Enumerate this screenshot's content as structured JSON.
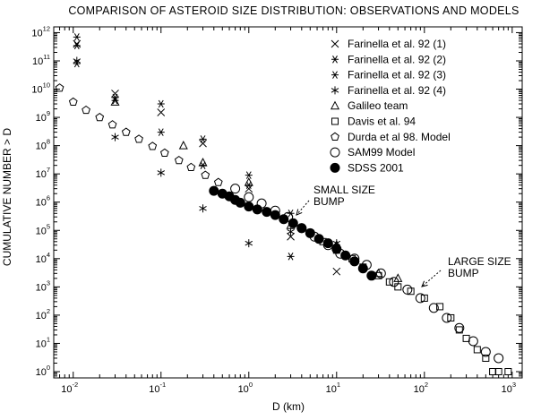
{
  "chart_data": {
    "type": "scatter",
    "title": "COMPARISON OF ASTEROID SIZE DISTRIBUTION: OBSERVATIONS AND MODELS",
    "xlabel": "D (km)",
    "ylabel": "CUMULATIVE NUMBER > D",
    "x_scale": "log",
    "y_scale": "log",
    "xlim": [
      0.006,
      1300
    ],
    "ylim": [
      0.6,
      1600000000000.0
    ],
    "x_ticks": [
      {
        "value": 0.01,
        "base": "10",
        "exp": "-2"
      },
      {
        "value": 0.1,
        "base": "10",
        "exp": "-1"
      },
      {
        "value": 1,
        "base": "10",
        "exp": "0"
      },
      {
        "value": 10,
        "base": "10",
        "exp": "1"
      },
      {
        "value": 100,
        "base": "10",
        "exp": "2"
      },
      {
        "value": 1000,
        "base": "10",
        "exp": "3"
      }
    ],
    "y_ticks": [
      {
        "value": 1,
        "base": "10",
        "exp": "0"
      },
      {
        "value": 10,
        "base": "10",
        "exp": "1"
      },
      {
        "value": 100,
        "base": "10",
        "exp": "2"
      },
      {
        "value": 1000,
        "base": "10",
        "exp": "3"
      },
      {
        "value": 10000,
        "base": "10",
        "exp": "4"
      },
      {
        "value": 100000,
        "base": "10",
        "exp": "5"
      },
      {
        "value": 1000000,
        "base": "10",
        "exp": "6"
      },
      {
        "value": 10000000,
        "base": "10",
        "exp": "7"
      },
      {
        "value": 100000000,
        "base": "10",
        "exp": "8"
      },
      {
        "value": 1000000000,
        "base": "10",
        "exp": "9"
      },
      {
        "value": 10000000000,
        "base": "10",
        "exp": "10"
      },
      {
        "value": 100000000000,
        "base": "10",
        "exp": "11"
      },
      {
        "value": 1000000000000,
        "base": "10",
        "exp": "12"
      }
    ],
    "grid": false,
    "legend_position": "top-right",
    "series": [
      {
        "name": "Farinella et al. 92 (1)",
        "marker": "x",
        "points": [
          [
            0.011,
            400000000000.0
          ],
          [
            0.03,
            7000000000.0
          ],
          [
            0.1,
            1500000000.0
          ],
          [
            0.3,
            120000000.0
          ],
          [
            1,
            3000000.0
          ],
          [
            3,
            60000.0
          ],
          [
            10,
            3500.0
          ]
        ]
      },
      {
        "name": "Farinella et al. 92 (2)",
        "marker": "asterisk",
        "points": [
          [
            0.011,
            700000000000.0
          ],
          [
            0.011,
            80000000000.0
          ],
          [
            0.03,
            4000000000.0
          ],
          [
            0.1,
            300000000.0
          ],
          [
            0.3,
            20000000.0
          ],
          [
            1,
            4000000.0
          ],
          [
            3,
            12000.0
          ],
          [
            10,
            25000.0
          ]
        ]
      },
      {
        "name": "Farinella et al. 92 (3)",
        "marker": "asterisk",
        "points": [
          [
            0.011,
            350000000000.0
          ],
          [
            0.03,
            5000000000.0
          ],
          [
            0.1,
            3000000000.0
          ],
          [
            0.3,
            170000000.0
          ],
          [
            1,
            9000000.0
          ],
          [
            3,
            400000.0
          ]
        ]
      },
      {
        "name": "Farinella et al. 92 (4)",
        "marker": "asterisk6",
        "points": [
          [
            0.011,
            100000000000.0
          ],
          [
            0.03,
            200000000.0
          ],
          [
            0.1,
            11000000.0
          ],
          [
            0.3,
            600000.0
          ],
          [
            1,
            35000.0
          ],
          [
            3,
            90000.0
          ],
          [
            10,
            35000.0
          ]
        ]
      },
      {
        "name": "Galileo team",
        "marker": "triangle",
        "points": [
          [
            0.03,
            3500000000.0
          ],
          [
            0.18,
            100000000.0
          ],
          [
            0.3,
            25000000.0
          ],
          [
            1,
            5000000.0
          ],
          [
            3,
            150000.0
          ],
          [
            10,
            30000.0
          ],
          [
            30,
            3000.0
          ],
          [
            50,
            2000.0
          ]
        ]
      },
      {
        "name": "Davis et al. 94",
        "marker": "square",
        "points": [
          [
            5,
            80000.0
          ],
          [
            7,
            40000.0
          ],
          [
            10,
            20000.0
          ],
          [
            15,
            10000.0
          ],
          [
            20,
            5000.0
          ],
          [
            30,
            2500.0
          ],
          [
            40,
            1500.0
          ],
          [
            50,
            1000.0
          ],
          [
            70,
            700.0
          ],
          [
            100,
            400.0
          ],
          [
            150,
            200.0
          ],
          [
            200,
            80.0
          ],
          [
            250,
            30.0
          ],
          [
            300,
            15.0
          ],
          [
            400,
            6
          ],
          [
            500,
            3
          ],
          [
            600,
            1
          ],
          [
            700,
            1
          ],
          [
            900,
            1
          ]
        ]
      },
      {
        "name": "Durda et al 98. Model",
        "marker": "pentagon",
        "points": [
          [
            0.007,
            11000000000.0
          ],
          [
            0.01,
            3500000000.0
          ],
          [
            0.014,
            1800000000.0
          ],
          [
            0.02,
            1000000000.0
          ],
          [
            0.028,
            550000000.0
          ],
          [
            0.04,
            300000000.0
          ],
          [
            0.056,
            170000000.0
          ],
          [
            0.08,
            95000000.0
          ],
          [
            0.11,
            55000000.0
          ],
          [
            0.16,
            30000000.0
          ],
          [
            0.22,
            17000000.0
          ],
          [
            0.32,
            9000000.0
          ],
          [
            0.45,
            5000000.0
          ]
        ]
      },
      {
        "name": "SAM99 Model",
        "marker": "circle",
        "points": [
          [
            0.7,
            3000000.0
          ],
          [
            1,
            1500000.0
          ],
          [
            1.4,
            900000.0
          ],
          [
            2,
            500000.0
          ],
          [
            2.8,
            300000.0
          ],
          [
            4,
            120000.0
          ],
          [
            5.6,
            60000.0
          ],
          [
            8,
            30000.0
          ],
          [
            11,
            15000.0
          ],
          [
            16,
            10000.0
          ],
          [
            22,
            6000.0
          ],
          [
            32,
            3000.0
          ],
          [
            45,
            1500.0
          ],
          [
            64,
            800.0
          ],
          [
            90,
            400.0
          ],
          [
            128,
            180.0
          ],
          [
            180,
            80.0
          ],
          [
            250,
            35.0
          ],
          [
            360,
            12.0
          ],
          [
            500,
            5
          ],
          [
            700,
            3
          ]
        ]
      },
      {
        "name": "SDSS 2001",
        "marker": "filled-circle",
        "points": [
          [
            0.4,
            2500000.0
          ],
          [
            0.5,
            2000000.0
          ],
          [
            0.6,
            1600000.0
          ],
          [
            0.7,
            1200000.0
          ],
          [
            0.8,
            950000.0
          ],
          [
            1,
            700000.0
          ],
          [
            1.25,
            550000.0
          ],
          [
            1.6,
            450000.0
          ],
          [
            2,
            350000.0
          ],
          [
            2.5,
            250000.0
          ],
          [
            3.2,
            180000.0
          ],
          [
            4,
            120000.0
          ],
          [
            5,
            80000.0
          ],
          [
            6.3,
            50000.0
          ],
          [
            8,
            35000.0
          ],
          [
            10,
            22000.0
          ],
          [
            12.6,
            13000.0
          ],
          [
            16,
            8000.0
          ],
          [
            20,
            4500.0
          ],
          [
            25,
            2500.0
          ]
        ]
      }
    ],
    "annotations": [
      {
        "lines": [
          "SMALL SIZE",
          "BUMP"
        ],
        "anchor": [
          3.2,
          300000.0
        ]
      },
      {
        "lines": [
          "LARGE SIZE",
          "BUMP"
        ],
        "anchor": [
          80,
          1000.0
        ]
      }
    ]
  }
}
